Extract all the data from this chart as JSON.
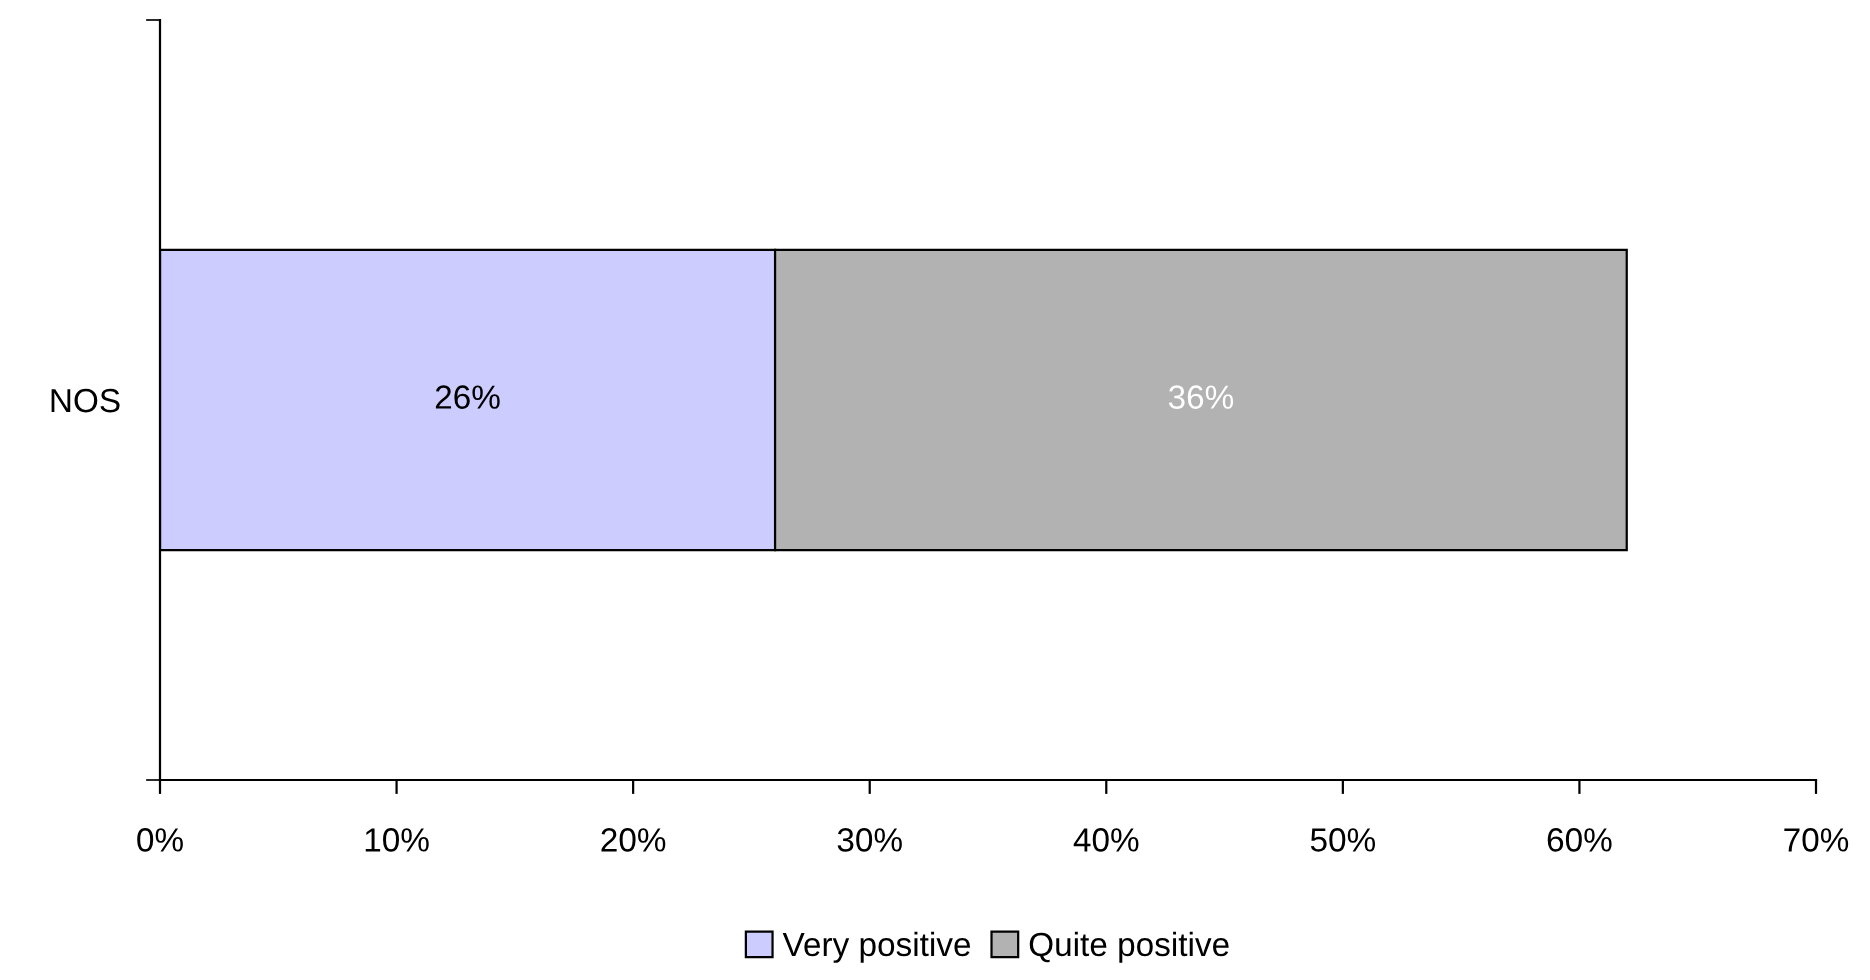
{
  "chart_data": {
    "type": "bar",
    "orientation": "horizontal",
    "stacked": true,
    "categories": [
      "NOS"
    ],
    "series": [
      {
        "name": "Very positive",
        "color": "#ccccff",
        "values": [
          26
        ],
        "value_labels": [
          "26%"
        ]
      },
      {
        "name": "Quite positive",
        "color": "#b2b2b2",
        "values": [
          36
        ],
        "value_labels": [
          "36%"
        ]
      }
    ],
    "xlim": [
      0,
      70
    ],
    "xticks": [
      {
        "value": 0,
        "label": "0%"
      },
      {
        "value": 10,
        "label": "10%"
      },
      {
        "value": 20,
        "label": "20%"
      },
      {
        "value": 30,
        "label": "30%"
      },
      {
        "value": 40,
        "label": "40%"
      },
      {
        "value": 50,
        "label": "50%"
      },
      {
        "value": 60,
        "label": "60%"
      },
      {
        "value": 70,
        "label": "70%"
      }
    ],
    "grid": false,
    "legend": "bottom"
  }
}
